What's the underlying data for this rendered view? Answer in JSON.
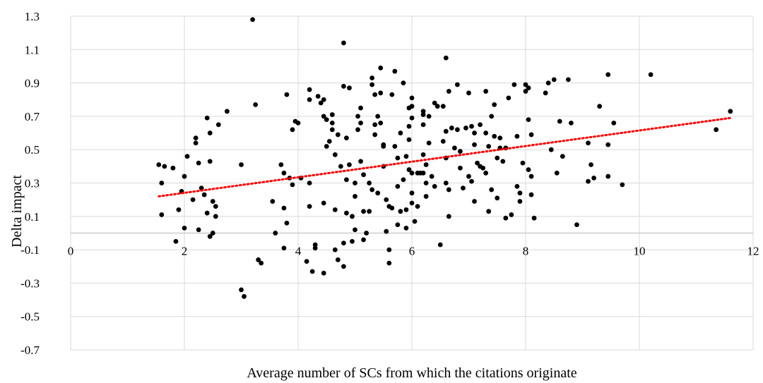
{
  "chart_data": {
    "type": "scatter",
    "title": "",
    "xlabel": "Average number of SCs from which the citations originate",
    "ylabel": "Delta impact",
    "xlim": [
      0,
      12
    ],
    "ylim": [
      -0.7,
      1.3
    ],
    "x_ticks": [
      "0",
      "2",
      "4",
      "6",
      "8",
      "10",
      "12"
    ],
    "y_ticks": [
      "-0.7",
      "-0.5",
      "-0.3",
      "-0.1",
      "0.1",
      "0.3",
      "0.5",
      "0.7",
      "0.9",
      "1.1",
      "1.3"
    ],
    "grid": "vertical and horizontal",
    "colors": {
      "points": "#000000",
      "trendline": "#ff0000",
      "grid": "#d9d9d9"
    },
    "trendline": {
      "style": "dotted",
      "x": [
        1.55,
        11.6
      ],
      "y": [
        0.22,
        0.69
      ]
    },
    "points": [
      [
        1.55,
        0.41
      ],
      [
        1.6,
        0.3
      ],
      [
        1.6,
        0.11
      ],
      [
        1.65,
        0.4
      ],
      [
        1.8,
        0.39
      ],
      [
        1.85,
        -0.05
      ],
      [
        1.9,
        0.14
      ],
      [
        1.95,
        0.25
      ],
      [
        2.0,
        0.03
      ],
      [
        2.0,
        0.34
      ],
      [
        2.05,
        0.46
      ],
      [
        2.15,
        0.2
      ],
      [
        2.2,
        0.57
      ],
      [
        2.2,
        0.54
      ],
      [
        2.25,
        0.42
      ],
      [
        2.25,
        0.02
      ],
      [
        2.3,
        0.27
      ],
      [
        2.35,
        0.23
      ],
      [
        2.4,
        0.69
      ],
      [
        2.4,
        0.12
      ],
      [
        2.45,
        0.43
      ],
      [
        2.45,
        -0.02
      ],
      [
        2.45,
        0.6
      ],
      [
        2.5,
        0.19
      ],
      [
        2.55,
        0.1
      ],
      [
        2.55,
        0.16
      ],
      [
        2.5,
        0.0
      ],
      [
        2.6,
        0.65
      ],
      [
        2.75,
        0.73
      ],
      [
        3.0,
        0.41
      ],
      [
        3.0,
        -0.34
      ],
      [
        3.05,
        -0.38
      ],
      [
        3.2,
        1.28
      ],
      [
        3.25,
        0.77
      ],
      [
        3.3,
        -0.16
      ],
      [
        3.35,
        -0.18
      ],
      [
        3.55,
        0.19
      ],
      [
        3.6,
        0.0
      ],
      [
        3.7,
        0.41
      ],
      [
        3.75,
        0.36
      ],
      [
        3.75,
        0.15
      ],
      [
        3.75,
        -0.09
      ],
      [
        3.8,
        0.06
      ],
      [
        3.8,
        0.83
      ],
      [
        3.85,
        0.33
      ],
      [
        3.9,
        0.29
      ],
      [
        3.9,
        0.62
      ],
      [
        3.95,
        0.67
      ],
      [
        4.0,
        0.66
      ],
      [
        4.05,
        0.33
      ],
      [
        4.15,
        -0.17
      ],
      [
        4.2,
        0.86
      ],
      [
        4.2,
        0.8
      ],
      [
        4.2,
        0.3
      ],
      [
        4.2,
        0.16
      ],
      [
        4.25,
        -0.23
      ],
      [
        4.3,
        -0.07
      ],
      [
        4.3,
        -0.09
      ],
      [
        4.35,
        0.82
      ],
      [
        4.4,
        0.78
      ],
      [
        4.45,
        0.8
      ],
      [
        4.45,
        0.7
      ],
      [
        4.45,
        0.18
      ],
      [
        4.45,
        -0.24
      ],
      [
        4.5,
        0.68
      ],
      [
        4.5,
        0.52
      ],
      [
        4.55,
        0.55
      ],
      [
        4.6,
        0.66
      ],
      [
        4.6,
        0.71
      ],
      [
        4.6,
        0.62
      ],
      [
        4.65,
        0.47
      ],
      [
        4.65,
        -0.1
      ],
      [
        4.65,
        0.14
      ],
      [
        4.7,
        0.59
      ],
      [
        4.7,
        -0.16
      ],
      [
        4.75,
        0.4
      ],
      [
        4.8,
        1.14
      ],
      [
        4.8,
        0.88
      ],
      [
        4.8,
        -0.2
      ],
      [
        4.8,
        -0.06
      ],
      [
        4.85,
        0.57
      ],
      [
        4.85,
        0.12
      ],
      [
        4.85,
        0.32
      ],
      [
        4.9,
        0.87
      ],
      [
        4.9,
        0.41
      ],
      [
        4.95,
        0.1
      ],
      [
        4.95,
        -0.05
      ],
      [
        5.0,
        0.22
      ],
      [
        5.0,
        0.3
      ],
      [
        5.0,
        0.02
      ],
      [
        5.05,
        0.7
      ],
      [
        5.05,
        0.62
      ],
      [
        5.1,
        0.75
      ],
      [
        5.1,
        0.66
      ],
      [
        5.1,
        0.43
      ],
      [
        5.15,
        0.35
      ],
      [
        5.15,
        0.13
      ],
      [
        5.15,
        -0.04
      ],
      [
        5.2,
        0.0
      ],
      [
        5.25,
        0.3
      ],
      [
        5.25,
        0.13
      ],
      [
        5.3,
        0.93
      ],
      [
        5.3,
        0.89
      ],
      [
        5.3,
        0.26
      ],
      [
        5.35,
        0.83
      ],
      [
        5.35,
        0.65
      ],
      [
        5.35,
        0.59
      ],
      [
        5.4,
        0.7
      ],
      [
        5.4,
        0.24
      ],
      [
        5.45,
        0.99
      ],
      [
        5.45,
        0.84
      ],
      [
        5.45,
        0.66
      ],
      [
        5.5,
        0.53
      ],
      [
        5.5,
        0.52
      ],
      [
        5.5,
        0.4
      ],
      [
        5.55,
        0.01
      ],
      [
        5.55,
        0.2
      ],
      [
        5.6,
        0.16
      ],
      [
        5.6,
        -0.1
      ],
      [
        5.6,
        -0.18
      ],
      [
        5.65,
        0.83
      ],
      [
        5.65,
        0.15
      ],
      [
        5.7,
        0.97
      ],
      [
        5.7,
        0.52
      ],
      [
        5.75,
        0.45
      ],
      [
        5.75,
        0.28
      ],
      [
        5.75,
        0.05
      ],
      [
        5.8,
        0.6
      ],
      [
        5.8,
        0.13
      ],
      [
        5.85,
        0.9
      ],
      [
        5.85,
        0.32
      ],
      [
        5.9,
        0.46
      ],
      [
        5.9,
        0.14
      ],
      [
        5.9,
        0.03
      ],
      [
        5.95,
        0.75
      ],
      [
        5.95,
        0.64
      ],
      [
        5.95,
        0.56
      ],
      [
        5.95,
        0.38
      ],
      [
        6.0,
        0.81
      ],
      [
        6.0,
        0.76
      ],
      [
        6.0,
        0.69
      ],
      [
        6.0,
        0.36
      ],
      [
        6.0,
        0.24
      ],
      [
        6.0,
        0.18
      ],
      [
        6.05,
        0.07
      ],
      [
        6.1,
        0.16
      ],
      [
        6.1,
        0.36
      ],
      [
        6.15,
        0.36
      ],
      [
        6.2,
        0.73
      ],
      [
        6.2,
        0.71
      ],
      [
        6.2,
        0.65
      ],
      [
        6.2,
        0.47
      ],
      [
        6.2,
        0.36
      ],
      [
        6.25,
        0.41
      ],
      [
        6.25,
        0.3
      ],
      [
        6.25,
        0.22
      ],
      [
        6.3,
        0.7
      ],
      [
        6.3,
        0.54
      ],
      [
        6.35,
        0.34
      ],
      [
        6.4,
        0.78
      ],
      [
        6.4,
        0.28
      ],
      [
        6.45,
        0.76
      ],
      [
        6.5,
        -0.07
      ],
      [
        6.55,
        0.76
      ],
      [
        6.55,
        0.55
      ],
      [
        6.6,
        1.05
      ],
      [
        6.6,
        0.61
      ],
      [
        6.6,
        0.45
      ],
      [
        6.6,
        0.3
      ],
      [
        6.65,
        0.85
      ],
      [
        6.65,
        0.26
      ],
      [
        6.65,
        0.1
      ],
      [
        6.7,
        0.63
      ],
      [
        6.75,
        0.51
      ],
      [
        6.8,
        0.89
      ],
      [
        6.8,
        0.62
      ],
      [
        6.85,
        0.49
      ],
      [
        6.85,
        0.39
      ],
      [
        6.9,
        0.27
      ],
      [
        6.95,
        0.63
      ],
      [
        7.0,
        0.84
      ],
      [
        7.0,
        0.34
      ],
      [
        7.05,
        0.64
      ],
      [
        7.05,
        0.31
      ],
      [
        7.1,
        0.6
      ],
      [
        7.1,
        0.19
      ],
      [
        7.1,
        0.53
      ],
      [
        7.15,
        0.42
      ],
      [
        7.2,
        0.65
      ],
      [
        7.2,
        0.4
      ],
      [
        7.25,
        0.39
      ],
      [
        7.3,
        0.85
      ],
      [
        7.3,
        0.6
      ],
      [
        7.3,
        0.36
      ],
      [
        7.35,
        0.52
      ],
      [
        7.35,
        0.13
      ],
      [
        7.4,
        0.7
      ],
      [
        7.4,
        0.26
      ],
      [
        7.45,
        0.77
      ],
      [
        7.45,
        0.58
      ],
      [
        7.5,
        0.45
      ],
      [
        7.5,
        0.21
      ],
      [
        7.55,
        0.57
      ],
      [
        7.55,
        0.51
      ],
      [
        7.6,
        0.43
      ],
      [
        7.65,
        0.51
      ],
      [
        7.65,
        0.09
      ],
      [
        7.7,
        0.81
      ],
      [
        7.75,
        0.11
      ],
      [
        7.8,
        0.89
      ],
      [
        7.85,
        0.58
      ],
      [
        7.85,
        0.28
      ],
      [
        7.9,
        0.24
      ],
      [
        7.9,
        0.19
      ],
      [
        7.95,
        0.42
      ],
      [
        8.0,
        0.89
      ],
      [
        8.0,
        0.85
      ],
      [
        8.05,
        0.87
      ],
      [
        8.05,
        0.38
      ],
      [
        8.05,
        0.68
      ],
      [
        8.1,
        0.59
      ],
      [
        8.1,
        0.34
      ],
      [
        8.1,
        0.23
      ],
      [
        8.15,
        0.09
      ],
      [
        8.35,
        0.84
      ],
      [
        8.4,
        0.9
      ],
      [
        8.45,
        0.5
      ],
      [
        8.5,
        0.92
      ],
      [
        8.55,
        0.36
      ],
      [
        8.6,
        0.67
      ],
      [
        8.65,
        0.46
      ],
      [
        8.75,
        0.92
      ],
      [
        8.8,
        0.66
      ],
      [
        8.9,
        0.05
      ],
      [
        9.1,
        0.54
      ],
      [
        9.1,
        0.31
      ],
      [
        9.15,
        0.41
      ],
      [
        9.2,
        0.33
      ],
      [
        9.3,
        0.76
      ],
      [
        9.45,
        0.95
      ],
      [
        9.45,
        0.53
      ],
      [
        9.45,
        0.34
      ],
      [
        9.55,
        0.66
      ],
      [
        9.7,
        0.29
      ],
      [
        10.2,
        0.95
      ],
      [
        11.35,
        0.62
      ],
      [
        11.6,
        0.73
      ]
    ]
  }
}
